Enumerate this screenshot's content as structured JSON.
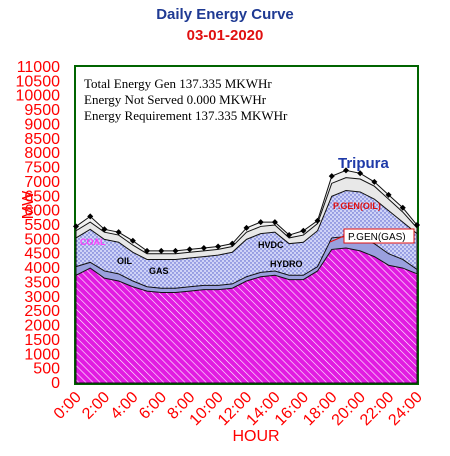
{
  "header": {
    "title": "Daily Energy Curve",
    "date": "03-01-2020"
  },
  "annotations": {
    "gen": "Total Energy Gen 137.335 MKWHr",
    "ns": "Energy Not Served   0.000 MKWHr",
    "req": "Energy Requirement      137.335 MKWHr"
  },
  "labels": {
    "state": "Tripura",
    "pgen_oil": "P.GEN(OIL)",
    "pgen_gas": "P.GEN(GAS)",
    "coal": "COAL",
    "oil": "OIL",
    "gas": "GAS",
    "hydro": "HYDRO",
    "hvdc": "HVDC"
  },
  "colors": {
    "plot_border": "#006400",
    "axis_text": "#ff0000",
    "base_fill": "#e11ce1",
    "mid_fill": "#cfd3f7",
    "top_fill": "#e8e8e8",
    "title": "#1f3a93",
    "date": "#e01010",
    "state": "#1f3aa8"
  },
  "chart_data": {
    "type": "area",
    "xlabel": "HOUR",
    "ylabel": "MW",
    "ylim": [
      0,
      11000
    ],
    "xlim": [
      0,
      24
    ],
    "yticks": [
      "0",
      "500",
      "1000",
      "1500",
      "2000",
      "2500",
      "3000",
      "3500",
      "4000",
      "4500",
      "5000",
      "5500",
      "6000",
      "6500",
      "7000",
      "7500",
      "8000",
      "8500",
      "9000",
      "9500",
      "10000",
      "10500",
      "11000"
    ],
    "xticks": [
      "0:00",
      "2:00",
      "4:00",
      "6:00",
      "8:00",
      "10:00",
      "12:00",
      "14:00",
      "16:00",
      "18:00",
      "20:00",
      "22:00",
      "24:00"
    ],
    "x": [
      0,
      1,
      2,
      3,
      4,
      5,
      6,
      7,
      8,
      9,
      10,
      11,
      12,
      13,
      14,
      15,
      16,
      17,
      18,
      19,
      20,
      21,
      22,
      23,
      24
    ],
    "series": [
      {
        "name": "COAL",
        "values": [
          3750,
          4000,
          3650,
          3550,
          3350,
          3200,
          3150,
          3150,
          3200,
          3250,
          3250,
          3300,
          3550,
          3700,
          3750,
          3600,
          3600,
          3900,
          4650,
          4700,
          4600,
          4400,
          4100,
          4000,
          3800
        ]
      },
      {
        "name": "HYDRO",
        "values": [
          4050,
          4200,
          3900,
          3800,
          3550,
          3350,
          3300,
          3300,
          3350,
          3400,
          3400,
          3450,
          3700,
          3850,
          3900,
          3750,
          3750,
          4050,
          5050,
          5100,
          5000,
          4850,
          4500,
          4300,
          3950
        ]
      },
      {
        "name": "HVDC",
        "values": [
          5050,
          5350,
          5000,
          4900,
          4550,
          4300,
          4300,
          4300,
          4350,
          4400,
          4450,
          4550,
          5000,
          5200,
          5250,
          4850,
          4900,
          5300,
          6500,
          6700,
          6650,
          6400,
          6000,
          5600,
          5200
        ]
      },
      {
        "name": "P.GEN(OIL)",
        "values": [
          5300,
          5600,
          5250,
          5150,
          4800,
          4500,
          4500,
          4500,
          4550,
          4600,
          4650,
          4750,
          5250,
          5450,
          5500,
          5050,
          5150,
          5550,
          6950,
          7150,
          7100,
          6850,
          6400,
          5950,
          5400
        ]
      },
      {
        "name": "Total",
        "values": [
          5450,
          5800,
          5350,
          5250,
          4950,
          4600,
          4600,
          4600,
          4650,
          4700,
          4750,
          4850,
          5400,
          5600,
          5600,
          5150,
          5300,
          5650,
          7200,
          7400,
          7300,
          7000,
          6550,
          6100,
          5500
        ]
      }
    ]
  }
}
